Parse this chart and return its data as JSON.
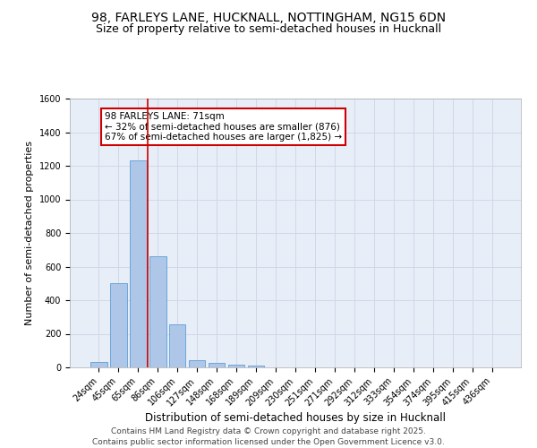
{
  "title1": "98, FARLEYS LANE, HUCKNALL, NOTTINGHAM, NG15 6DN",
  "title2": "Size of property relative to semi-detached houses in Hucknall",
  "xlabel": "Distribution of semi-detached houses by size in Hucknall",
  "ylabel": "Number of semi-detached properties",
  "categories": [
    "24sqm",
    "45sqm",
    "65sqm",
    "86sqm",
    "106sqm",
    "127sqm",
    "148sqm",
    "168sqm",
    "189sqm",
    "209sqm",
    "230sqm",
    "251sqm",
    "271sqm",
    "292sqm",
    "312sqm",
    "333sqm",
    "354sqm",
    "374sqm",
    "395sqm",
    "415sqm",
    "436sqm"
  ],
  "values": [
    30,
    500,
    1230,
    660,
    255,
    45,
    25,
    15,
    12,
    0,
    0,
    0,
    0,
    0,
    0,
    0,
    0,
    0,
    0,
    0,
    0
  ],
  "bar_color": "#aec6e8",
  "bar_edge_color": "#5a9fd4",
  "grid_color": "#d0d8e8",
  "background_color": "#e8eef8",
  "vline_x": 2.5,
  "vline_color": "#cc0000",
  "annotation_text": "98 FARLEYS LANE: 71sqm\n← 32% of semi-detached houses are smaller (876)\n67% of semi-detached houses are larger (1,825) →",
  "annotation_box_color": "#cc0000",
  "ylim": [
    0,
    1600
  ],
  "yticks": [
    0,
    200,
    400,
    600,
    800,
    1000,
    1200,
    1400,
    1600
  ],
  "footer1": "Contains HM Land Registry data © Crown copyright and database right 2025.",
  "footer2": "Contains public sector information licensed under the Open Government Licence v3.0.",
  "title1_fontsize": 10,
  "title2_fontsize": 9,
  "xlabel_fontsize": 8.5,
  "ylabel_fontsize": 8,
  "tick_fontsize": 7,
  "annotation_fontsize": 7.5,
  "footer_fontsize": 6.5
}
